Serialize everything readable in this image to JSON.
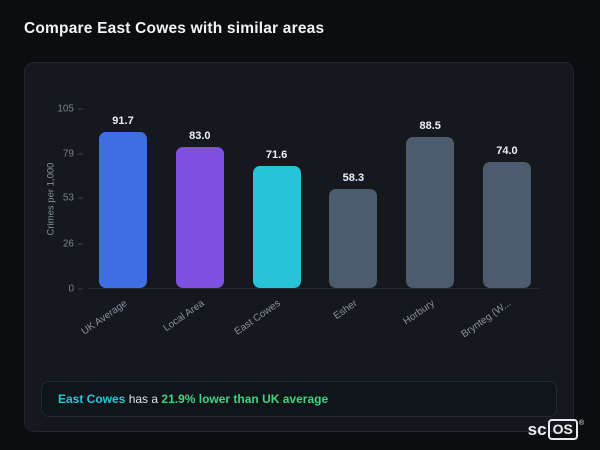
{
  "page": {
    "title": "Compare East Cowes with similar areas"
  },
  "chart_data": {
    "type": "bar",
    "title": "",
    "categories": [
      "UK Average",
      "Local Area",
      "East Cowes",
      "Esher",
      "Horbury",
      "Brynteg (W..."
    ],
    "values": [
      91.7,
      83.0,
      71.6,
      58.3,
      88.5,
      74.0
    ],
    "value_labels": [
      "91.7",
      "83.0",
      "71.6",
      "58.3",
      "88.5",
      "74.0"
    ],
    "bar_colors": [
      "#3e6ee3",
      "#7e4fe0",
      "#27c3d8",
      "#4d5b6e",
      "#4d5b6e",
      "#4d5b6e"
    ],
    "xlabel": "",
    "ylabel": "Crimes per 1,000",
    "yticks": [
      0,
      26,
      53,
      79,
      105
    ],
    "ylim": [
      0,
      105
    ],
    "grid": false,
    "legend": false
  },
  "footer_note": {
    "subject": "East Cowes",
    "connector": " has a ",
    "highlight": "21.9% lower than UK average",
    "subject_color": "#2cc5d6",
    "highlight_color": "#3fd27f"
  },
  "logo": {
    "prefix": "sc",
    "boxed": "OS",
    "registered": "®"
  }
}
